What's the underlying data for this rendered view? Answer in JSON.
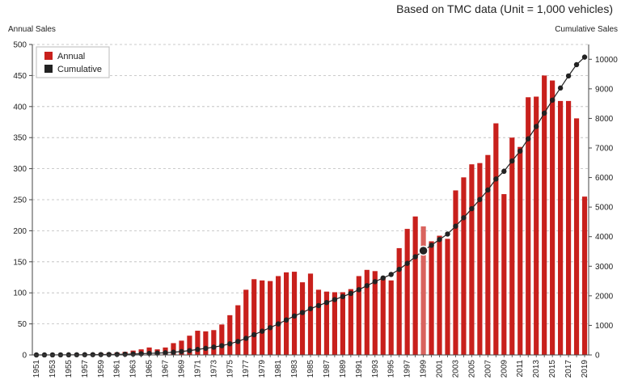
{
  "header": {
    "title": "Based on TMC data (Unit = 1,000 vehicles)",
    "left_axis_label": "Annual Sales",
    "right_axis_label": "Cumulative Sales"
  },
  "colors": {
    "annual": "#c8201c",
    "annual_highlight": "#d9635e",
    "cumulative": "#222222",
    "grid": "#bbbbbb"
  },
  "chart_data": {
    "type": "bar",
    "title": "Based on TMC data (Unit = 1,000 vehicles)",
    "ylabel": "Annual Sales",
    "y2label": "Cumulative Sales",
    "ylim": [
      0,
      500
    ],
    "y2lim": [
      0,
      10500
    ],
    "yticks": [
      0,
      50,
      100,
      150,
      200,
      250,
      300,
      350,
      400,
      450,
      500
    ],
    "y2ticks": [
      0,
      1000,
      2000,
      3000,
      4000,
      5000,
      6000,
      7000,
      8000,
      9000,
      10000
    ],
    "grid": true,
    "legend_position": "top-left",
    "highlighted_category": "1999",
    "categories": [
      "1951",
      "1952",
      "1953",
      "1954",
      "1955",
      "1956",
      "1957",
      "1958",
      "1959",
      "1960",
      "1961",
      "1962",
      "1963",
      "1964",
      "1965",
      "1966",
      "1967",
      "1968",
      "1969",
      "1970",
      "1971",
      "1972",
      "1973",
      "1974",
      "1975",
      "1976",
      "1977",
      "1978",
      "1979",
      "1980",
      "1981",
      "1982",
      "1983",
      "1984",
      "1985",
      "1986",
      "1987",
      "1988",
      "1989",
      "1990",
      "1991",
      "1992",
      "1993",
      "1994",
      "1995",
      "1996",
      "1997",
      "1998",
      "1999",
      "2000",
      "2001",
      "2002",
      "2003",
      "2004",
      "2005",
      "2006",
      "2007",
      "2008",
      "2009",
      "2010",
      "2011",
      "2012",
      "2013",
      "2014",
      "2015",
      "2016",
      "2017",
      "2018",
      "2019"
    ],
    "xtick_labels": [
      "1951",
      "1953",
      "1955",
      "1957",
      "1959",
      "1961",
      "1963",
      "1965",
      "1967",
      "1969",
      "1971",
      "1973",
      "1975",
      "1977",
      "1979",
      "1981",
      "1983",
      "1985",
      "1987",
      "1989",
      "1991",
      "1993",
      "1995",
      "1997",
      "1999",
      "2001",
      "2003",
      "2005",
      "2007",
      "2009",
      "2011",
      "2013",
      "2015",
      "2017",
      "2019"
    ],
    "series": [
      {
        "name": "Annual",
        "type": "bar",
        "axis": "left",
        "values": [
          0,
          0.5,
          1,
          1,
          1,
          2,
          2,
          2,
          3,
          3,
          4,
          5,
          7,
          9,
          12,
          9,
          12,
          19,
          23,
          31,
          39,
          38,
          40,
          49,
          64,
          80,
          105,
          122,
          120,
          119,
          127,
          133,
          134,
          117,
          131,
          105,
          102,
          101,
          101,
          106,
          127,
          137,
          135,
          124,
          120,
          172,
          203,
          223,
          207,
          183,
          192,
          187,
          265,
          286,
          307,
          309,
          322,
          373,
          259,
          350,
          335,
          415,
          416,
          450,
          442,
          409,
          409,
          381,
          255
        ]
      },
      {
        "name": "Cumulative",
        "type": "line",
        "axis": "right",
        "values": [
          0,
          0.5,
          1.5,
          2.5,
          3.5,
          5.5,
          7.5,
          9.5,
          12.5,
          15.5,
          19.5,
          24.5,
          31.5,
          40.5,
          52.5,
          61.5,
          73.5,
          92.5,
          115.5,
          146.5,
          185.5,
          223.5,
          263.5,
          312.5,
          376.5,
          456.5,
          561.5,
          683.5,
          803.5,
          922.5,
          1049.5,
          1182.5,
          1316.5,
          1433.5,
          1564.5,
          1669.5,
          1771.5,
          1872.5,
          1973.5,
          2079.5,
          2206.5,
          2343.5,
          2478.5,
          2602.5,
          2722.5,
          2894.5,
          3097.5,
          3320.5,
          3527.5,
          3710.5,
          3902.5,
          4089.5,
          4354.5,
          4640.5,
          4947.5,
          5256.5,
          5578.5,
          5951.5,
          6210.5,
          6560.5,
          6895.5,
          7310.5,
          7726.5,
          8176.5,
          8618.5,
          9027.5,
          9436.5,
          9817.5,
          10072.5
        ]
      }
    ]
  }
}
